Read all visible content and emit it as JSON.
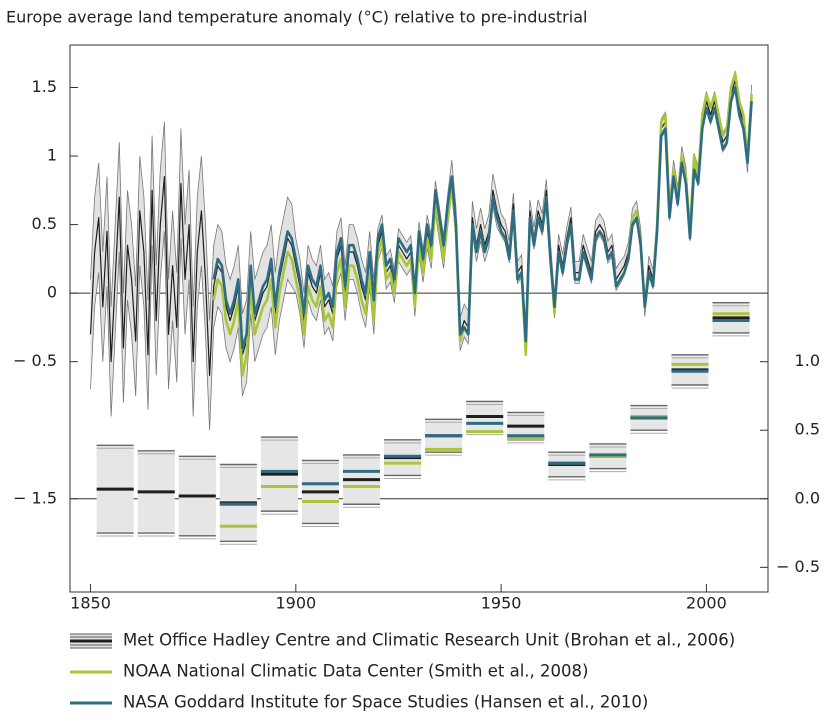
{
  "chart_data": {
    "type": "line",
    "title": "Europe average land temperature anomaly (°C) relative to pre-industrial",
    "x": [
      1850,
      1851,
      1852,
      1853,
      1854,
      1855,
      1856,
      1857,
      1858,
      1859,
      1860,
      1861,
      1862,
      1863,
      1864,
      1865,
      1866,
      1867,
      1868,
      1869,
      1870,
      1871,
      1872,
      1873,
      1874,
      1875,
      1876,
      1877,
      1878,
      1879,
      1880,
      1881,
      1882,
      1883,
      1884,
      1885,
      1886,
      1887,
      1888,
      1889,
      1890,
      1891,
      1892,
      1893,
      1894,
      1895,
      1896,
      1897,
      1898,
      1899,
      1900,
      1901,
      1902,
      1903,
      1904,
      1905,
      1906,
      1907,
      1908,
      1909,
      1910,
      1911,
      1912,
      1913,
      1914,
      1915,
      1916,
      1917,
      1918,
      1919,
      1920,
      1921,
      1922,
      1923,
      1924,
      1925,
      1926,
      1927,
      1928,
      1929,
      1930,
      1931,
      1932,
      1933,
      1934,
      1935,
      1936,
      1937,
      1938,
      1939,
      1940,
      1941,
      1942,
      1943,
      1944,
      1945,
      1946,
      1947,
      1948,
      1949,
      1950,
      1951,
      1952,
      1953,
      1954,
      1955,
      1956,
      1957,
      1958,
      1959,
      1960,
      1961,
      1962,
      1963,
      1964,
      1965,
      1966,
      1967,
      1968,
      1969,
      1970,
      1971,
      1972,
      1973,
      1974,
      1975,
      1976,
      1977,
      1978,
      1979,
      1980,
      1981,
      1982,
      1983,
      1984,
      1985,
      1986,
      1987,
      1988,
      1989,
      1990,
      1991,
      1992,
      1993,
      1994,
      1995,
      1996,
      1997,
      1998,
      1999,
      2000,
      2001,
      2002,
      2003,
      2004,
      2005,
      2006,
      2007,
      2008,
      2009,
      2010,
      2011
    ],
    "xlim": [
      1845,
      2015
    ],
    "xticks": [
      1850,
      1900,
      1950,
      2000
    ],
    "ylim": [
      -2.18,
      1.81
    ],
    "yticks": [
      1.5,
      1,
      0.5,
      0,
      {
        "value": -0.5,
        "label": "− 0.5"
      },
      {
        "value": -1.5,
        "label": "− 1.5"
      }
    ],
    "y2lim": [
      -0.68,
      3.31
    ],
    "y2ticks": [
      {
        "value": 1,
        "label": "1.0"
      },
      0.5,
      {
        "value": 0,
        "label": "0.0"
      },
      {
        "value": -0.5,
        "label": "− 0.5"
      }
    ],
    "series": [
      {
        "name": "Met Office Hadley Centre and Climatic Research Unit (Brohan et al., 2006)",
        "color": "#1e1e1e",
        "band_color": "#e2e2e2",
        "values": [
          -0.3,
          0.3,
          0.55,
          -0.1,
          0.45,
          -0.5,
          0.1,
          0.7,
          -0.4,
          0.35,
          0.1,
          -0.35,
          0.6,
          0.3,
          -0.45,
          0.75,
          -0.2,
          0.5,
          0.85,
          -0.3,
          0.2,
          -0.25,
          0.8,
          0.1,
          0.5,
          -0.5,
          0.3,
          0.6,
          0.1,
          -0.6,
          0.05,
          0.2,
          0.15,
          -0.1,
          -0.2,
          -0.1,
          0.05,
          -0.45,
          -0.35,
          0.15,
          -0.2,
          -0.1,
          0.0,
          0.05,
          0.2,
          -0.15,
          0.1,
          0.25,
          0.4,
          0.35,
          0.2,
          0.05,
          -0.2,
          0.15,
          0.05,
          0.0,
          0.15,
          -0.1,
          -0.05,
          -0.15,
          0.25,
          0.35,
          0.0,
          0.3,
          0.3,
          0.2,
          0.05,
          -0.05,
          0.25,
          -0.1,
          0.35,
          0.45,
          0.15,
          0.2,
          0.05,
          0.35,
          0.3,
          0.25,
          0.3,
          -0.05,
          0.4,
          0.2,
          0.45,
          0.3,
          0.7,
          0.5,
          0.3,
          0.6,
          0.85,
          0.5,
          -0.3,
          -0.2,
          -0.25,
          0.55,
          0.35,
          0.5,
          0.35,
          0.45,
          0.75,
          0.6,
          0.5,
          0.45,
          0.3,
          0.65,
          0.15,
          0.2,
          -0.35,
          0.6,
          0.4,
          0.6,
          0.5,
          0.75,
          0.3,
          -0.1,
          0.35,
          0.2,
          0.4,
          0.55,
          0.15,
          0.15,
          0.35,
          0.25,
          0.15,
          0.45,
          0.5,
          0.45,
          0.3,
          0.35,
          0.1,
          0.15,
          0.2,
          0.3,
          0.55,
          0.6,
          0.4,
          -0.1,
          0.2,
          0.1,
          0.5,
          1.2,
          1.25,
          0.6,
          0.9,
          0.7,
          1.0,
          0.85,
          0.45,
          0.95,
          0.85,
          1.25,
          1.4,
          1.3,
          1.4,
          1.25,
          1.1,
          1.15,
          1.45,
          1.55,
          1.35,
          1.25,
          0.95,
          1.45
        ],
        "errors": [
          0.4,
          0.4,
          0.4,
          0.4,
          0.4,
          0.4,
          0.4,
          0.4,
          0.4,
          0.4,
          0.4,
          0.4,
          0.4,
          0.4,
          0.4,
          0.4,
          0.4,
          0.4,
          0.4,
          0.4,
          0.4,
          0.4,
          0.4,
          0.4,
          0.4,
          0.4,
          0.4,
          0.4,
          0.4,
          0.4,
          0.3,
          0.3,
          0.3,
          0.3,
          0.3,
          0.3,
          0.3,
          0.3,
          0.3,
          0.3,
          0.3,
          0.3,
          0.3,
          0.3,
          0.3,
          0.3,
          0.3,
          0.3,
          0.3,
          0.3,
          0.2,
          0.2,
          0.2,
          0.2,
          0.2,
          0.2,
          0.2,
          0.2,
          0.2,
          0.2,
          0.2,
          0.2,
          0.2,
          0.2,
          0.2,
          0.2,
          0.2,
          0.2,
          0.2,
          0.2,
          0.12,
          0.12,
          0.12,
          0.12,
          0.12,
          0.12,
          0.12,
          0.12,
          0.12,
          0.12,
          0.12,
          0.12,
          0.12,
          0.12,
          0.12,
          0.12,
          0.12,
          0.12,
          0.12,
          0.12,
          0.12,
          0.12,
          0.12,
          0.12,
          0.12,
          0.12,
          0.12,
          0.12,
          0.12,
          0.12,
          0.08,
          0.08,
          0.08,
          0.08,
          0.08,
          0.08,
          0.08,
          0.08,
          0.08,
          0.08,
          0.08,
          0.08,
          0.08,
          0.08,
          0.08,
          0.08,
          0.08,
          0.08,
          0.08,
          0.08,
          0.08,
          0.08,
          0.08,
          0.08,
          0.08,
          0.08,
          0.08,
          0.08,
          0.08,
          0.08,
          0.07,
          0.07,
          0.07,
          0.07,
          0.07,
          0.07,
          0.07,
          0.07,
          0.07,
          0.07,
          0.07,
          0.07,
          0.07,
          0.07,
          0.07,
          0.07,
          0.07,
          0.07,
          0.07,
          0.07,
          0.07,
          0.07,
          0.07,
          0.07,
          0.07,
          0.07,
          0.07,
          0.07,
          0.07,
          0.07,
          0.07,
          0.07
        ]
      },
      {
        "name": "NOAA National Climatic Data Center (Smith et al., 2008)",
        "color": "#a8c63a",
        "values": [
          null,
          null,
          null,
          null,
          null,
          null,
          null,
          null,
          null,
          null,
          null,
          null,
          null,
          null,
          null,
          null,
          null,
          null,
          null,
          null,
          null,
          null,
          null,
          null,
          null,
          null,
          null,
          null,
          null,
          null,
          -0.05,
          0.1,
          0.05,
          -0.2,
          -0.3,
          -0.2,
          -0.05,
          -0.6,
          -0.45,
          0.05,
          -0.3,
          -0.2,
          -0.1,
          -0.05,
          0.1,
          -0.25,
          0.0,
          0.15,
          0.3,
          0.25,
          0.1,
          -0.05,
          -0.3,
          0.05,
          -0.05,
          -0.1,
          0.05,
          -0.2,
          -0.15,
          -0.25,
          0.15,
          0.25,
          -0.1,
          0.2,
          0.2,
          0.1,
          -0.05,
          -0.15,
          0.15,
          -0.2,
          0.3,
          0.4,
          0.1,
          0.15,
          0.0,
          0.3,
          0.25,
          0.2,
          0.25,
          -0.1,
          0.35,
          0.15,
          0.4,
          0.25,
          0.65,
          0.45,
          0.25,
          0.55,
          0.8,
          0.45,
          -0.35,
          -0.25,
          -0.3,
          0.5,
          0.3,
          0.45,
          0.3,
          0.4,
          0.7,
          0.55,
          0.45,
          0.4,
          0.25,
          0.6,
          0.1,
          0.15,
          -0.45,
          0.55,
          0.35,
          0.55,
          0.45,
          0.7,
          0.25,
          -0.15,
          0.3,
          0.15,
          0.35,
          0.5,
          0.1,
          0.1,
          0.3,
          0.2,
          0.1,
          0.4,
          0.45,
          0.4,
          0.25,
          0.3,
          0.05,
          0.1,
          0.15,
          0.25,
          0.55,
          0.6,
          0.35,
          -0.1,
          0.15,
          0.05,
          0.5,
          1.25,
          1.3,
          0.6,
          0.9,
          0.7,
          1.0,
          0.85,
          0.45,
          1.0,
          0.85,
          1.3,
          1.45,
          1.35,
          1.45,
          1.3,
          1.15,
          1.2,
          1.5,
          1.6,
          1.4,
          1.3,
          1.0,
          1.45
        ]
      },
      {
        "name": "NASA Goddard Institute for Space Studies (Hansen et al., 2010)",
        "color": "#2e6c84",
        "values": [
          null,
          null,
          null,
          null,
          null,
          null,
          null,
          null,
          null,
          null,
          null,
          null,
          null,
          null,
          null,
          null,
          null,
          null,
          null,
          null,
          null,
          null,
          null,
          null,
          null,
          null,
          null,
          null,
          null,
          null,
          0.1,
          0.25,
          0.2,
          -0.05,
          -0.15,
          -0.05,
          0.1,
          -0.4,
          -0.3,
          0.2,
          -0.15,
          -0.05,
          0.05,
          0.1,
          0.25,
          -0.1,
          0.15,
          0.3,
          0.45,
          0.4,
          0.25,
          0.1,
          -0.15,
          0.2,
          0.1,
          0.05,
          0.2,
          -0.05,
          0.0,
          -0.1,
          0.3,
          0.4,
          0.05,
          0.35,
          0.35,
          0.25,
          0.1,
          0.0,
          0.3,
          -0.05,
          0.4,
          0.5,
          0.2,
          0.25,
          0.1,
          0.4,
          0.35,
          0.3,
          0.35,
          0.0,
          0.45,
          0.25,
          0.5,
          0.35,
          0.75,
          0.55,
          0.35,
          0.65,
          0.85,
          0.5,
          -0.3,
          -0.25,
          -0.3,
          0.5,
          0.3,
          0.45,
          0.3,
          0.4,
          0.7,
          0.55,
          0.45,
          0.4,
          0.25,
          0.6,
          0.1,
          0.15,
          -0.35,
          0.55,
          0.35,
          0.55,
          0.45,
          0.7,
          0.25,
          -0.1,
          0.3,
          0.15,
          0.35,
          0.5,
          0.1,
          0.1,
          0.3,
          0.2,
          0.1,
          0.4,
          0.45,
          0.4,
          0.25,
          0.3,
          0.05,
          0.1,
          0.15,
          0.25,
          0.5,
          0.55,
          0.35,
          -0.1,
          0.15,
          0.05,
          0.45,
          1.15,
          1.2,
          0.55,
          0.85,
          0.65,
          0.95,
          0.8,
          0.4,
          0.9,
          0.8,
          1.2,
          1.35,
          1.25,
          1.35,
          1.2,
          1.05,
          1.1,
          1.4,
          1.5,
          1.3,
          1.2,
          0.95,
          1.4
        ]
      }
    ],
    "decadal": {
      "axis": "y2",
      "x": [
        1851,
        1861,
        1871,
        1881,
        1891,
        1901,
        1911,
        1921,
        1931,
        1941,
        1951,
        1961,
        1971,
        1981,
        1991,
        2001
      ],
      "series": [
        {
          "values": [
            0.07,
            0.05,
            0.02,
            -0.03,
            0.18,
            0.05,
            0.14,
            0.3,
            0.46,
            0.6,
            0.53,
            0.25,
            0.31,
            0.59,
            0.94,
            1.32
          ],
          "errors": [
            0.32,
            0.3,
            0.29,
            0.28,
            0.27,
            0.23,
            0.18,
            0.13,
            0.12,
            0.11,
            0.1,
            0.09,
            0.09,
            0.09,
            0.11,
            0.11
          ]
        },
        {
          "values": [
            null,
            null,
            null,
            -0.2,
            0.09,
            -0.02,
            0.09,
            0.26,
            0.36,
            0.49,
            0.44,
            0.26,
            0.31,
            0.6,
            0.98,
            1.35
          ]
        },
        {
          "values": [
            null,
            null,
            null,
            -0.04,
            0.2,
            0.11,
            0.2,
            0.31,
            0.46,
            0.55,
            0.46,
            0.26,
            0.32,
            0.59,
            0.93,
            1.3
          ]
        }
      ]
    }
  }
}
